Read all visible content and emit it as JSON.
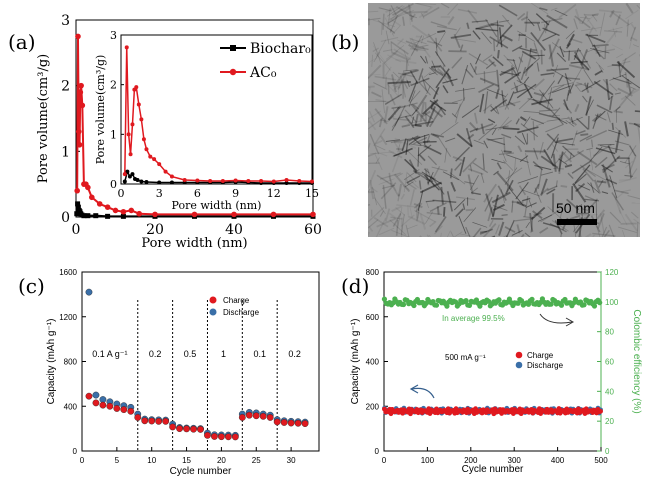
{
  "panel_labels": {
    "a": "(a)",
    "b": "(b)",
    "c": "(c)",
    "d": "(d)"
  },
  "chart_data": [
    {
      "id": "a",
      "type": "line",
      "title": "",
      "xlabel": "Pore width (nm)",
      "ylabel": "Pore volume(cm³/g)",
      "xlim": [
        0,
        60
      ],
      "ylim": [
        0,
        3
      ],
      "xticks": [
        0,
        20,
        40,
        60
      ],
      "yticks": [
        0,
        1,
        2,
        3
      ],
      "legend": "top-right",
      "series": [
        {
          "name": "Biochar₀",
          "color": "#000000",
          "marker": "square",
          "x": [
            0.2,
            0.4,
            0.6,
            0.8,
            1.0,
            1.2,
            1.5,
            2,
            3,
            5,
            8,
            12,
            20,
            30,
            40,
            50,
            60
          ],
          "y": [
            0.05,
            0.2,
            0.15,
            0.1,
            0.08,
            0.05,
            0.03,
            0.02,
            0.02,
            0.02,
            0.01,
            0.01,
            0.01,
            0.01,
            0.01,
            0.01,
            0.01
          ]
        },
        {
          "name": "AC₀",
          "color": "#e0191f",
          "marker": "circle",
          "x": [
            0.3,
            0.5,
            0.7,
            0.9,
            1.1,
            1.3,
            1.6,
            2,
            2.5,
            3,
            4,
            6,
            8,
            10,
            12,
            14,
            16,
            20,
            30,
            40,
            50,
            60
          ],
          "y": [
            0.4,
            2.75,
            1.3,
            1.1,
            1.9,
            2.0,
            1.7,
            0.5,
            0.5,
            0.45,
            0.3,
            0.2,
            0.15,
            0.1,
            0.08,
            0.1,
            0.05,
            0.04,
            0.04,
            0.04,
            0.04,
            0.04
          ]
        }
      ],
      "inset": {
        "xlabel": "Pore width (nm)",
        "ylabel": "Pore volume(cm³/g)",
        "xlim": [
          0,
          15
        ],
        "ylim": [
          0,
          3
        ],
        "xticks": [
          0,
          3,
          6,
          9,
          12,
          15
        ],
        "yticks": [
          0,
          1,
          2,
          3
        ],
        "series": [
          {
            "name": "Biochar₀",
            "color": "#000000",
            "x": [
              0.3,
              0.5,
              0.7,
              0.9,
              1.1,
              1.3,
              1.6,
              2,
              3,
              4,
              5,
              6,
              7,
              8,
              9,
              10,
              11,
              12,
              13,
              14,
              15
            ],
            "y": [
              0.05,
              0.25,
              0.15,
              0.2,
              0.1,
              0.08,
              0.05,
              0.04,
              0.03,
              0.03,
              0.03,
              0.03,
              0.03,
              0.03,
              0.04,
              0.03,
              0.02,
              0.02,
              0.02,
              0.02,
              0.02
            ]
          },
          {
            "name": "AC₀",
            "color": "#e0191f",
            "x": [
              0.3,
              0.45,
              0.6,
              0.75,
              0.9,
              1.05,
              1.2,
              1.4,
              1.6,
              1.8,
              2.0,
              2.3,
              2.6,
              3,
              3.5,
              4,
              5,
              6,
              7,
              8,
              9,
              10,
              11,
              12,
              13,
              14,
              15
            ],
            "y": [
              0.2,
              2.75,
              1.0,
              0.6,
              1.2,
              1.9,
              1.95,
              1.6,
              1.3,
              0.9,
              0.7,
              0.55,
              0.5,
              0.4,
              0.25,
              0.15,
              0.08,
              0.07,
              0.06,
              0.06,
              0.07,
              0.06,
              0.06,
              0.05,
              0.08,
              0.06,
              0.05
            ]
          }
        ]
      }
    },
    {
      "id": "c",
      "type": "scatter",
      "title": "",
      "xlabel": "Cycle number",
      "ylabel": "Capacity (mAh g⁻¹)",
      "xlim": [
        0,
        34
      ],
      "ylim": [
        0,
        1600
      ],
      "xticks": [
        0,
        5,
        10,
        15,
        20,
        25,
        30
      ],
      "yticks": [
        0,
        400,
        800,
        1200,
        1600
      ],
      "legend": "top-right",
      "rate_labels": [
        "0.1 A g⁻¹",
        "0.2",
        "0.5",
        "1",
        "0.1",
        "0.2"
      ],
      "rate_label_x": [
        4,
        10.5,
        15.5,
        20.3,
        25.5,
        30.5
      ],
      "rate_label_y": 840,
      "dividers": [
        8,
        13,
        18,
        23,
        28
      ],
      "series": [
        {
          "name": "Charge",
          "color": "#e0191f",
          "x": [
            1,
            2,
            3,
            4,
            5,
            6,
            7,
            8,
            9,
            10,
            11,
            12,
            13,
            14,
            15,
            16,
            17,
            18,
            19,
            20,
            21,
            22,
            23,
            24,
            25,
            26,
            27,
            28,
            29,
            30,
            31,
            32
          ],
          "y": [
            490,
            430,
            410,
            400,
            380,
            370,
            355,
            300,
            270,
            268,
            265,
            265,
            215,
            200,
            198,
            195,
            193,
            140,
            130,
            128,
            127,
            126,
            300,
            320,
            315,
            310,
            300,
            260,
            255,
            250,
            248,
            245
          ]
        },
        {
          "name": "Discharge",
          "color": "#3a6fa8",
          "x": [
            1,
            2,
            3,
            4,
            5,
            6,
            7,
            8,
            9,
            10,
            11,
            12,
            13,
            14,
            15,
            16,
            17,
            18,
            19,
            20,
            21,
            22,
            23,
            24,
            25,
            26,
            27,
            28,
            29,
            30,
            31,
            32
          ],
          "y": [
            1420,
            500,
            460,
            440,
            420,
            405,
            390,
            330,
            285,
            280,
            278,
            276,
            240,
            210,
            205,
            203,
            200,
            160,
            145,
            143,
            142,
            140,
            330,
            345,
            340,
            330,
            320,
            280,
            270,
            265,
            262,
            258
          ]
        }
      ]
    },
    {
      "id": "d",
      "type": "scatter",
      "title": "",
      "xlabel": "Cycle number",
      "ylabel": "Capacity (mAh g⁻¹)",
      "y2label": "Colombic efficiency (%)",
      "xlim": [
        0,
        500
      ],
      "ylim": [
        0,
        800
      ],
      "y2lim": [
        0,
        120
      ],
      "xticks": [
        0,
        100,
        200,
        300,
        400,
        500
      ],
      "yticks": [
        0,
        200,
        400,
        600,
        800
      ],
      "y2ticks": [
        0,
        20,
        40,
        60,
        80,
        100,
        120
      ],
      "y2color": "#4cb050",
      "annotation_efficiency": "In average 99.5%",
      "annotation_rate": "500 mA g⁻¹",
      "legend": "center",
      "series": [
        {
          "name": "Charge",
          "color": "#e0191f",
          "capacity_mean": 178,
          "capacity_amp": 12
        },
        {
          "name": "Discharge",
          "color": "#3a6fa8",
          "capacity_mean": 180,
          "capacity_amp": 12
        },
        {
          "name": "Colombic efficiency",
          "color": "#4cb050",
          "efficiency_mean": 99.5,
          "efficiency_amp": 2.5
        }
      ]
    }
  ],
  "tem": {
    "scale_label": "50 nm"
  }
}
